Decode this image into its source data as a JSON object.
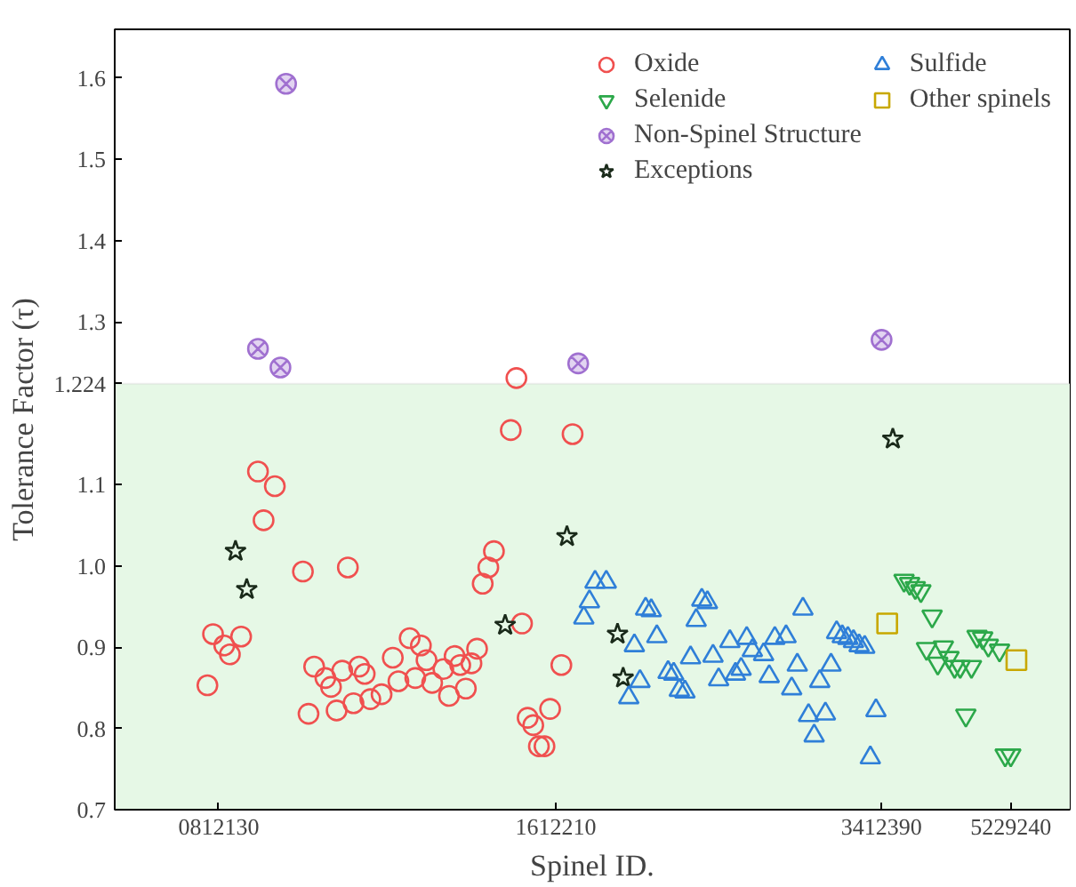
{
  "chart_data": {
    "type": "scatter",
    "xlabel": "Spinel ID.",
    "ylabel": "Tolerance Factor (τ)",
    "categories": [
      null,
      null,
      null,
      null,
      null,
      null,
      null,
      null,
      null,
      null,
      null,
      null,
      null,
      null,
      null,
      null,
      null,
      null,
      "0812130",
      null,
      null,
      null,
      null,
      null,
      null,
      null,
      null,
      null,
      null,
      null,
      null,
      null,
      null,
      null,
      null,
      null,
      null,
      null,
      null,
      null,
      null,
      null,
      null,
      null,
      null,
      null,
      null,
      null,
      null,
      null,
      null,
      null,
      null,
      null,
      null,
      null,
      null,
      null,
      null,
      null,
      null,
      null,
      null,
      null,
      null,
      null,
      null,
      null,
      null,
      null,
      null,
      null,
      null,
      null,
      null,
      null,
      null,
      null,
      "1612210",
      null,
      null,
      null,
      null,
      null,
      null,
      null,
      null,
      null,
      null,
      null,
      null,
      null,
      null,
      null,
      null,
      null,
      null,
      null,
      null,
      null,
      null,
      null,
      null,
      null,
      null,
      null,
      null,
      null,
      null,
      null,
      null,
      null,
      null,
      null,
      null,
      null,
      null,
      null,
      null,
      null,
      null,
      null,
      null,
      null,
      null,
      null,
      null,
      null,
      null,
      null,
      null,
      null,
      null,
      null,
      null,
      null,
      "3412390",
      null,
      null,
      null,
      null,
      null,
      null,
      null,
      null,
      null,
      null,
      null,
      null,
      null,
      null,
      null,
      null,
      null,
      null,
      null,
      null,
      null,
      null,
      "5229240",
      null,
      null,
      null,
      null,
      null,
      null,
      null,
      null,
      null,
      null
    ],
    "ylim": [
      0.7,
      1.66
    ],
    "yticks": [
      0.7,
      0.8,
      0.9,
      {
        "value": 1.0,
        "label": "1.0"
      },
      1.1,
      {
        "value": 1.224,
        "label": "1.224"
      },
      1.3,
      1.4,
      1.5,
      1.6
    ],
    "bands": [
      {
        "axis": "y",
        "from": 0.7,
        "to": 1.224,
        "color": "#e6f8e6"
      }
    ],
    "legend": "top right",
    "series": [
      {
        "name": "Oxide",
        "color": "#f0504f",
        "marker": "circle",
        "values": [
          null,
          null,
          null,
          null,
          null,
          null,
          null,
          null,
          null,
          null,
          null,
          null,
          null,
          null,
          null,
          null,
          0.853,
          0.916,
          null,
          0.902,
          0.891,
          null,
          0.913,
          null,
          null,
          1.116,
          1.056,
          null,
          1.098,
          null,
          null,
          null,
          null,
          0.993,
          0.818,
          0.876,
          null,
          0.862,
          0.851,
          0.822,
          0.871,
          0.998,
          0.831,
          0.876,
          0.867,
          0.836,
          null,
          0.842,
          null,
          0.887,
          0.858,
          null,
          0.911,
          0.862,
          0.902,
          0.884,
          0.856,
          null,
          0.873,
          0.84,
          0.889,
          0.878,
          0.849,
          0.88,
          0.898,
          0.978,
          0.998,
          1.018,
          null,
          null,
          1.167,
          1.231,
          0.929,
          0.813,
          0.804,
          0.778,
          0.778,
          0.824,
          null,
          0.878,
          null,
          1.162,
          null,
          null,
          null,
          null,
          null,
          null,
          null,
          null,
          null,
          null,
          null,
          null,
          null,
          null,
          null,
          null,
          null,
          null,
          null,
          null,
          null,
          null,
          null,
          null,
          null,
          null,
          null,
          null,
          null,
          null,
          null,
          null,
          null,
          null,
          null,
          null,
          null,
          null,
          null,
          null,
          null,
          null,
          null,
          null,
          null,
          null,
          null,
          null,
          null,
          null,
          null,
          null,
          null,
          null,
          null,
          null,
          null,
          null,
          null,
          null,
          null,
          null,
          null,
          null,
          null,
          null,
          null,
          null,
          null,
          null,
          null,
          null,
          null,
          null,
          null,
          null,
          null,
          null,
          null,
          null,
          null,
          null,
          null,
          null,
          null,
          null,
          null,
          null
        ]
      },
      {
        "name": "Selenide",
        "color": "#2ca84a",
        "values": [
          null,
          null,
          null,
          null,
          null,
          null,
          null,
          null,
          null,
          null,
          null,
          null,
          null,
          null,
          null,
          null,
          null,
          null,
          null,
          null,
          null,
          null,
          null,
          null,
          null,
          null,
          null,
          null,
          null,
          null,
          null,
          null,
          null,
          null,
          null,
          null,
          null,
          null,
          null,
          null,
          null,
          null,
          null,
          null,
          null,
          null,
          null,
          null,
          null,
          null,
          null,
          null,
          null,
          null,
          null,
          null,
          null,
          null,
          null,
          null,
          null,
          null,
          null,
          null,
          null,
          null,
          null,
          null,
          null,
          null,
          null,
          null,
          null,
          null,
          null,
          null,
          null,
          null,
          null,
          null,
          null,
          null,
          null,
          null,
          null,
          null,
          null,
          null,
          null,
          null,
          null,
          null,
          null,
          null,
          null,
          null,
          null,
          null,
          null,
          null,
          null,
          null,
          null,
          null,
          null,
          null,
          null,
          null,
          null,
          null,
          null,
          null,
          null,
          null,
          null,
          null,
          null,
          null,
          null,
          null,
          null,
          null,
          null,
          null,
          null,
          null,
          null,
          null,
          null,
          null,
          null,
          null,
          null,
          null,
          null,
          null,
          null,
          null,
          null,
          null,
          0.982,
          0.978,
          0.973,
          0.969,
          0.898,
          0.938,
          0.88,
          0.9,
          0.887,
          0.876,
          0.876,
          0.816,
          0.876,
          0.913,
          0.911,
          0.902,
          null,
          0.896,
          0.767,
          0.767,
          null,
          null,
          null,
          null,
          null,
          null,
          null,
          null,
          null,
          null
        ]
      },
      {
        "name": "Non-Spinel Structure",
        "color": "#a070d0",
        "marker": "cross",
        "values": [
          null,
          null,
          null,
          null,
          null,
          null,
          null,
          null,
          null,
          null,
          null,
          null,
          null,
          null,
          null,
          null,
          null,
          null,
          null,
          null,
          null,
          null,
          null,
          null,
          null,
          1.267,
          null,
          null,
          null,
          1.244,
          1.593,
          null,
          null,
          null,
          null,
          null,
          null,
          null,
          null,
          null,
          null,
          null,
          null,
          null,
          null,
          null,
          null,
          null,
          null,
          null,
          null,
          null,
          null,
          null,
          null,
          null,
          null,
          null,
          null,
          null,
          null,
          null,
          null,
          null,
          null,
          null,
          null,
          null,
          null,
          null,
          null,
          null,
          null,
          null,
          null,
          null,
          null,
          null,
          null,
          null,
          null,
          null,
          1.249,
          null,
          null,
          null,
          null,
          null,
          null,
          null,
          null,
          null,
          null,
          null,
          null,
          null,
          null,
          null,
          null,
          null,
          null,
          null,
          null,
          null,
          null,
          null,
          null,
          null,
          null,
          null,
          null,
          null,
          null,
          null,
          null,
          null,
          null,
          null,
          null,
          null,
          null,
          null,
          null,
          null,
          null,
          null,
          null,
          null,
          null,
          null,
          null,
          null,
          null,
          null,
          null,
          null,
          1.278,
          null,
          null,
          null,
          null,
          null,
          null,
          null,
          null,
          null,
          null,
          null,
          null,
          null,
          null,
          null,
          null,
          null,
          null,
          null,
          null,
          null,
          null,
          null,
          null,
          null,
          null,
          null,
          null,
          null,
          null,
          null,
          null,
          null
        ]
      },
      {
        "name": "Exceptions",
        "color": "#1a2a1a",
        "marker": "star",
        "values": [
          null,
          null,
          null,
          null,
          null,
          null,
          null,
          null,
          null,
          null,
          null,
          null,
          null,
          null,
          null,
          null,
          null,
          null,
          null,
          null,
          null,
          1.018,
          null,
          0.971,
          null,
          null,
          null,
          null,
          null,
          null,
          null,
          null,
          null,
          null,
          null,
          null,
          null,
          null,
          null,
          null,
          null,
          null,
          null,
          null,
          null,
          null,
          null,
          null,
          null,
          null,
          null,
          null,
          null,
          null,
          null,
          null,
          null,
          null,
          null,
          null,
          null,
          null,
          null,
          null,
          null,
          null,
          null,
          null,
          null,
          0.927,
          null,
          null,
          null,
          null,
          null,
          null,
          null,
          null,
          null,
          null,
          1.036,
          null,
          null,
          null,
          null,
          null,
          null,
          null,
          null,
          0.916,
          0.862,
          null,
          null,
          null,
          null,
          null,
          null,
          null,
          null,
          null,
          null,
          null,
          null,
          null,
          null,
          null,
          null,
          null,
          null,
          null,
          null,
          null,
          null,
          null,
          null,
          null,
          null,
          null,
          null,
          null,
          null,
          null,
          null,
          null,
          null,
          null,
          null,
          null,
          null,
          null,
          null,
          null,
          null,
          null,
          null,
          null,
          null,
          null,
          1.156,
          null,
          null,
          null,
          null,
          null,
          null,
          null,
          null,
          null,
          null,
          null,
          null,
          null,
          null,
          null,
          null,
          null,
          null,
          null,
          null,
          null,
          null,
          null,
          null,
          null,
          null,
          null,
          null,
          null,
          null,
          null
        ]
      },
      {
        "name": "Sulfide",
        "color": "#2f7fd8",
        "marker": "triangle",
        "values": [
          null,
          null,
          null,
          null,
          null,
          null,
          null,
          null,
          null,
          null,
          null,
          null,
          null,
          null,
          null,
          null,
          null,
          null,
          null,
          null,
          null,
          null,
          null,
          null,
          null,
          null,
          null,
          null,
          null,
          null,
          null,
          null,
          null,
          null,
          null,
          null,
          null,
          null,
          null,
          null,
          null,
          null,
          null,
          null,
          null,
          null,
          null,
          null,
          null,
          null,
          null,
          null,
          null,
          null,
          null,
          null,
          null,
          null,
          null,
          null,
          null,
          null,
          null,
          null,
          null,
          null,
          null,
          null,
          null,
          null,
          null,
          null,
          null,
          null,
          null,
          null,
          null,
          null,
          null,
          null,
          null,
          null,
          null,
          0.936,
          0.956,
          0.98,
          null,
          0.98,
          null,
          null,
          null,
          0.838,
          0.902,
          0.858,
          0.947,
          0.945,
          0.913,
          null,
          0.869,
          0.867,
          0.847,
          0.845,
          0.887,
          0.933,
          0.958,
          0.955,
          0.889,
          0.86,
          null,
          0.907,
          0.867,
          0.873,
          0.911,
          0.896,
          null,
          0.891,
          0.864,
          0.911,
          null,
          0.913,
          0.849,
          0.878,
          0.947,
          0.816,
          0.791,
          0.858,
          0.818,
          0.878,
          0.918,
          0.913,
          0.911,
          0.907,
          0.902,
          0.9,
          0.764,
          0.822,
          null,
          null,
          null,
          null,
          null,
          null,
          null,
          null,
          null,
          null,
          null,
          null,
          null,
          null,
          null,
          null,
          null,
          null,
          null,
          null,
          null,
          null,
          null,
          null,
          null,
          null,
          null,
          null,
          null,
          null,
          null,
          null,
          null,
          null
        ]
      },
      {
        "name": "Other spinels",
        "color": "#c8a800",
        "marker": "square",
        "values": [
          null,
          null,
          null,
          null,
          null,
          null,
          null,
          null,
          null,
          null,
          null,
          null,
          null,
          null,
          null,
          null,
          null,
          null,
          null,
          null,
          null,
          null,
          null,
          null,
          null,
          null,
          null,
          null,
          null,
          null,
          null,
          null,
          null,
          null,
          null,
          null,
          null,
          null,
          null,
          null,
          null,
          null,
          null,
          null,
          null,
          null,
          null,
          null,
          null,
          null,
          null,
          null,
          null,
          null,
          null,
          null,
          null,
          null,
          null,
          null,
          null,
          null,
          null,
          null,
          null,
          null,
          null,
          null,
          null,
          null,
          null,
          null,
          null,
          null,
          null,
          null,
          null,
          null,
          null,
          null,
          null,
          null,
          null,
          null,
          null,
          null,
          null,
          null,
          null,
          null,
          null,
          null,
          null,
          null,
          null,
          null,
          null,
          null,
          null,
          null,
          null,
          null,
          null,
          null,
          null,
          null,
          null,
          null,
          null,
          null,
          null,
          null,
          null,
          null,
          null,
          null,
          null,
          null,
          null,
          null,
          null,
          null,
          null,
          null,
          null,
          null,
          null,
          null,
          null,
          null,
          null,
          null,
          null,
          null,
          null,
          null,
          null,
          0.929,
          null,
          null,
          null,
          null,
          null,
          null,
          null,
          null,
          null,
          null,
          null,
          null,
          null,
          null,
          null,
          null,
          null,
          null,
          null,
          null,
          null,
          null,
          0.884,
          null,
          null,
          null,
          null,
          null,
          null,
          null,
          null,
          null
        ]
      }
    ]
  }
}
